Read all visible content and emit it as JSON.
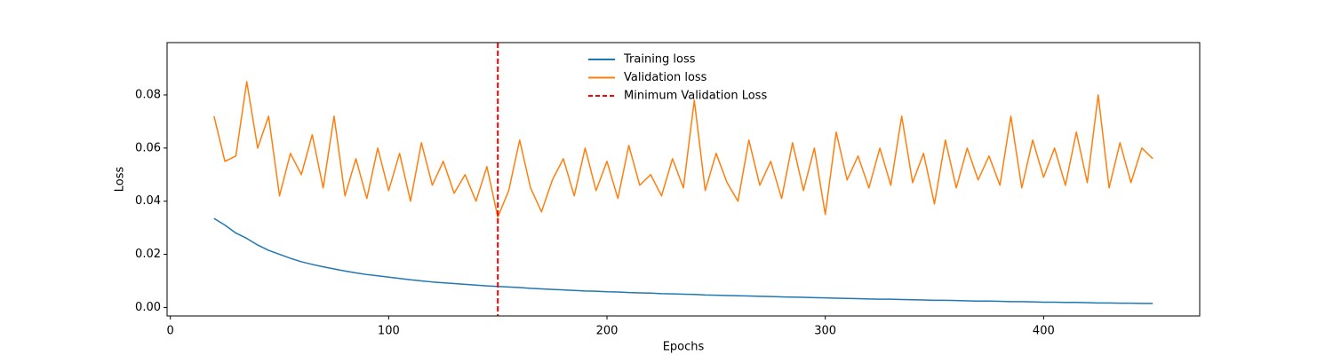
{
  "chart_data": {
    "type": "line",
    "xlabel": "Epochs",
    "ylabel": "Loss",
    "x": [
      20,
      25,
      30,
      35,
      40,
      45,
      50,
      55,
      60,
      65,
      70,
      75,
      80,
      85,
      90,
      95,
      100,
      105,
      110,
      115,
      120,
      125,
      130,
      135,
      140,
      145,
      150,
      155,
      160,
      165,
      170,
      175,
      180,
      185,
      190,
      195,
      200,
      205,
      210,
      215,
      220,
      225,
      230,
      235,
      240,
      245,
      250,
      255,
      260,
      265,
      270,
      275,
      280,
      285,
      290,
      295,
      300,
      305,
      310,
      315,
      320,
      325,
      330,
      335,
      340,
      345,
      350,
      355,
      360,
      365,
      370,
      375,
      380,
      385,
      390,
      395,
      400,
      405,
      410,
      415,
      420,
      425,
      430,
      435,
      440,
      445,
      450
    ],
    "series": [
      {
        "name": "Training loss",
        "color": "#1f77b4",
        "values": [
          0.0335,
          0.031,
          0.028,
          0.026,
          0.0235,
          0.0215,
          0.02,
          0.0185,
          0.0172,
          0.0162,
          0.0153,
          0.0145,
          0.0137,
          0.013,
          0.0124,
          0.0119,
          0.0114,
          0.0109,
          0.0104,
          0.01,
          0.0096,
          0.0093,
          0.009,
          0.0087,
          0.0084,
          0.0081,
          0.0079,
          0.0077,
          0.0075,
          0.0072,
          0.007,
          0.0068,
          0.0066,
          0.0064,
          0.0062,
          0.0061,
          0.0059,
          0.0058,
          0.0056,
          0.0055,
          0.0054,
          0.0052,
          0.0051,
          0.005,
          0.0049,
          0.0047,
          0.0046,
          0.0045,
          0.0044,
          0.0043,
          0.0042,
          0.0041,
          0.004,
          0.0039,
          0.0038,
          0.0037,
          0.0036,
          0.0035,
          0.0034,
          0.0033,
          0.0032,
          0.0031,
          0.0031,
          0.003,
          0.0029,
          0.0028,
          0.0027,
          0.0027,
          0.0026,
          0.0025,
          0.0024,
          0.0024,
          0.0023,
          0.0022,
          0.0022,
          0.0021,
          0.002,
          0.002,
          0.0019,
          0.0019,
          0.0018,
          0.0017,
          0.0017,
          0.0016,
          0.0016,
          0.0015,
          0.0015
        ]
      },
      {
        "name": "Validation loss",
        "color": "#ff7f0e",
        "values": [
          0.072,
          0.055,
          0.057,
          0.085,
          0.06,
          0.072,
          0.042,
          0.058,
          0.05,
          0.065,
          0.045,
          0.072,
          0.042,
          0.056,
          0.041,
          0.06,
          0.044,
          0.058,
          0.04,
          0.062,
          0.046,
          0.055,
          0.043,
          0.05,
          0.04,
          0.053,
          0.034,
          0.044,
          0.063,
          0.045,
          0.036,
          0.048,
          0.056,
          0.042,
          0.06,
          0.044,
          0.055,
          0.041,
          0.061,
          0.046,
          0.05,
          0.042,
          0.056,
          0.045,
          0.078,
          0.044,
          0.058,
          0.047,
          0.04,
          0.063,
          0.046,
          0.055,
          0.041,
          0.062,
          0.044,
          0.06,
          0.035,
          0.066,
          0.048,
          0.057,
          0.045,
          0.06,
          0.046,
          0.072,
          0.047,
          0.058,
          0.039,
          0.063,
          0.045,
          0.06,
          0.048,
          0.057,
          0.046,
          0.072,
          0.045,
          0.063,
          0.049,
          0.06,
          0.046,
          0.066,
          0.047,
          0.08,
          0.045,
          0.062,
          0.047,
          0.06,
          0.056
        ]
      }
    ],
    "vline": {
      "x": 150,
      "name": "Minimum Validation Loss",
      "color": "#ff0000"
    },
    "xlim": [
      -1.5,
      471.5
    ],
    "ylim": [
      -0.0032,
      0.0997
    ],
    "xticks": [
      0,
      100,
      200,
      300,
      400
    ],
    "yticks": [
      {
        "value": 0,
        "label": "0.00"
      },
      0.02,
      0.04,
      0.06,
      0.08
    ],
    "legend": "upper center"
  }
}
